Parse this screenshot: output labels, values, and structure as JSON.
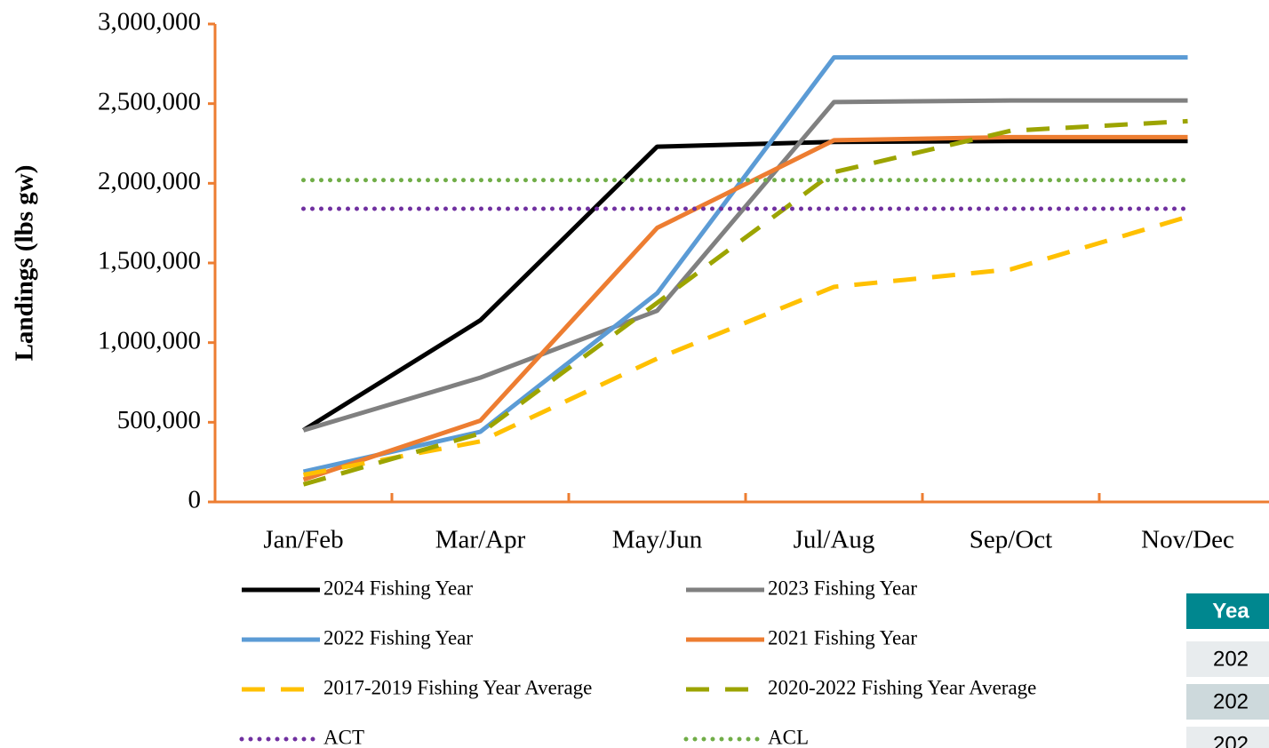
{
  "chart_data": {
    "type": "line",
    "y_label": "Landings (lbs gw)",
    "categories": [
      "Jan/Feb",
      "Mar/Apr",
      "May/Jun",
      "Jul/Aug",
      "Sep/Oct",
      "Nov/Dec"
    ],
    "ylim": [
      0,
      3000000
    ],
    "yticks": [
      0,
      {
        "value": 500000,
        "label": "500,000"
      },
      {
        "value": 1000000,
        "label": "1,000,000"
      },
      {
        "value": 1500000,
        "label": "1,500,000"
      },
      {
        "value": 2000000,
        "label": "2,000,000"
      },
      {
        "value": 2500000,
        "label": "2,500,000"
      },
      {
        "value": 3000000,
        "label": "3,000,000"
      }
    ],
    "axis_color": "#ed7d31",
    "series": [
      {
        "name": "2024 Fishing Year",
        "color": "#000000",
        "dash": "solid",
        "values": [
          450000,
          1140000,
          2230000,
          2260000,
          2265000,
          2265000
        ]
      },
      {
        "name": "2023 Fishing Year",
        "color": "#808080",
        "dash": "solid",
        "values": [
          450000,
          780000,
          1200000,
          2510000,
          2520000,
          2520000
        ]
      },
      {
        "name": "2022 Fishing Year",
        "color": "#5b9bd5",
        "dash": "solid",
        "values": [
          190000,
          440000,
          1310000,
          2790000,
          2790000,
          2790000
        ]
      },
      {
        "name": "2021 Fishing Year",
        "color": "#ed7d31",
        "dash": "solid",
        "values": [
          140000,
          510000,
          1720000,
          2270000,
          2290000,
          2290000
        ]
      },
      {
        "name": "2017-2019 Fishing Year Average",
        "color": "#ffc000",
        "dash": "dashed",
        "values": [
          170000,
          380000,
          900000,
          1350000,
          1460000,
          1790000
        ]
      },
      {
        "name": "2020-2022 Fishing Year Average",
        "color": "#9ca400",
        "dash": "dashed",
        "values": [
          110000,
          430000,
          1250000,
          2070000,
          2330000,
          2390000
        ]
      },
      {
        "name": "ACT",
        "color": "#7030a0",
        "dash": "dotted",
        "values": [
          1840000,
          1840000,
          1840000,
          1840000,
          1840000,
          1840000
        ]
      },
      {
        "name": "ACL",
        "color": "#70ad47",
        "dash": "dotted",
        "values": [
          2020000,
          2020000,
          2020000,
          2020000,
          2020000,
          2020000
        ]
      }
    ]
  },
  "table": {
    "header": [
      "Yea"
    ],
    "rows": [
      [
        "202"
      ],
      [
        "202"
      ],
      [
        "202"
      ]
    ]
  }
}
